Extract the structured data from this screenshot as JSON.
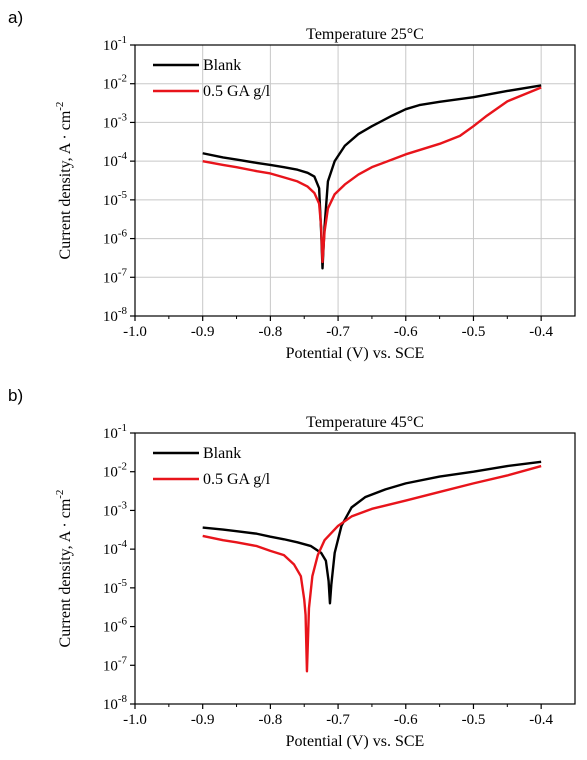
{
  "chart_data": [
    {
      "panel_label": "a)",
      "type": "line",
      "title": "Temperature 25°C",
      "xlabel": "Potential (V) vs. SCE",
      "ylabel": "Current density, A · cm",
      "ylabel_exp": "-2",
      "xlim": [
        -1.0,
        -0.35
      ],
      "ylim": [
        1e-08,
        0.1
      ],
      "yscale": "log",
      "grid": true,
      "legend": "top-left",
      "xticks": [
        -1.0,
        -0.9,
        -0.8,
        -0.7,
        -0.6,
        -0.5,
        -0.4
      ],
      "xtick_labels": [
        "-1.0",
        "-0.9",
        "-0.8",
        "-0.7",
        "-0.6",
        "-0.5",
        "-0.4"
      ],
      "ytick_exponents": [
        "-8",
        "-7",
        "-6",
        "-5",
        "-4",
        "-3",
        "-2",
        "-1"
      ],
      "series": [
        {
          "name": "Blank",
          "color": "#000000",
          "x": [
            -0.9,
            -0.87,
            -0.85,
            -0.82,
            -0.8,
            -0.78,
            -0.76,
            -0.745,
            -0.735,
            -0.728,
            -0.725,
            -0.723,
            -0.72,
            -0.715,
            -0.705,
            -0.69,
            -0.67,
            -0.65,
            -0.62,
            -0.6,
            -0.58,
            -0.55,
            -0.5,
            -0.45,
            -0.4
          ],
          "y": [
            0.00016,
            0.000125,
            0.00011,
            9e-05,
            8e-05,
            7e-05,
            6e-05,
            5e-05,
            4e-05,
            2e-05,
            1.5e-06,
            1.7e-07,
            2e-06,
            3e-05,
            0.0001,
            0.00025,
            0.0005,
            0.0008,
            0.0015,
            0.0022,
            0.0028,
            0.0034,
            0.0045,
            0.0065,
            0.009
          ]
        },
        {
          "name": "0.5 GA g/l",
          "color": "#e8141b",
          "x": [
            -0.9,
            -0.87,
            -0.85,
            -0.82,
            -0.8,
            -0.78,
            -0.76,
            -0.745,
            -0.735,
            -0.728,
            -0.725,
            -0.723,
            -0.72,
            -0.715,
            -0.705,
            -0.69,
            -0.67,
            -0.65,
            -0.62,
            -0.6,
            -0.55,
            -0.52,
            -0.5,
            -0.48,
            -0.45,
            -0.4
          ],
          "y": [
            0.0001,
            8e-05,
            7e-05,
            5.5e-05,
            4.8e-05,
            3.8e-05,
            3e-05,
            2.2e-05,
            1.5e-05,
            8e-06,
            2e-06,
            2.5e-07,
            1.5e-06,
            6e-06,
            1.4e-05,
            2.5e-05,
            4.5e-05,
            7e-05,
            0.00011,
            0.00015,
            0.00028,
            0.00045,
            0.0008,
            0.0015,
            0.0035,
            0.008
          ]
        }
      ]
    },
    {
      "panel_label": "b)",
      "type": "line",
      "title": "Temperature 45°C",
      "xlabel": "Potential (V) vs. SCE",
      "ylabel": "Current density, A · cm",
      "ylabel_exp": "-2",
      "xlim": [
        -1.0,
        -0.35
      ],
      "ylim": [
        1e-08,
        0.1
      ],
      "yscale": "log",
      "grid": false,
      "legend": "top-left",
      "xticks": [
        -1.0,
        -0.9,
        -0.8,
        -0.7,
        -0.6,
        -0.5,
        -0.4
      ],
      "xtick_labels": [
        "-1.0",
        "-0.9",
        "-0.8",
        "-0.7",
        "-0.6",
        "-0.5",
        "-0.4"
      ],
      "ytick_exponents": [
        "-8",
        "-7",
        "-6",
        "-5",
        "-4",
        "-3",
        "-2",
        "-1"
      ],
      "series": [
        {
          "name": "Blank",
          "color": "#000000",
          "x": [
            -0.9,
            -0.87,
            -0.85,
            -0.82,
            -0.8,
            -0.78,
            -0.76,
            -0.74,
            -0.725,
            -0.718,
            -0.714,
            -0.712,
            -0.71,
            -0.705,
            -0.695,
            -0.68,
            -0.66,
            -0.63,
            -0.6,
            -0.55,
            -0.5,
            -0.45,
            -0.4
          ],
          "y": [
            0.00036,
            0.00032,
            0.00029,
            0.00025,
            0.00021,
            0.00018,
            0.00015,
            0.00012,
            8e-05,
            5e-05,
            1.5e-05,
            4e-06,
            1.2e-05,
            8e-05,
            0.0004,
            0.0012,
            0.0022,
            0.0035,
            0.005,
            0.0075,
            0.01,
            0.014,
            0.018
          ]
        },
        {
          "name": "0.5 GA g/l",
          "color": "#e8141b",
          "x": [
            -0.9,
            -0.87,
            -0.85,
            -0.82,
            -0.8,
            -0.78,
            -0.765,
            -0.755,
            -0.75,
            -0.748,
            -0.746,
            -0.743,
            -0.738,
            -0.73,
            -0.72,
            -0.7,
            -0.68,
            -0.65,
            -0.6,
            -0.55,
            -0.5,
            -0.45,
            -0.4
          ],
          "y": [
            0.00022,
            0.00017,
            0.00015,
            0.00012,
            9e-05,
            7e-05,
            4e-05,
            2e-05,
            5e-06,
            2e-06,
            7e-08,
            3e-06,
            2e-05,
            7e-05,
            0.00017,
            0.0004,
            0.0007,
            0.0011,
            0.0018,
            0.003,
            0.005,
            0.008,
            0.014
          ]
        }
      ]
    }
  ]
}
